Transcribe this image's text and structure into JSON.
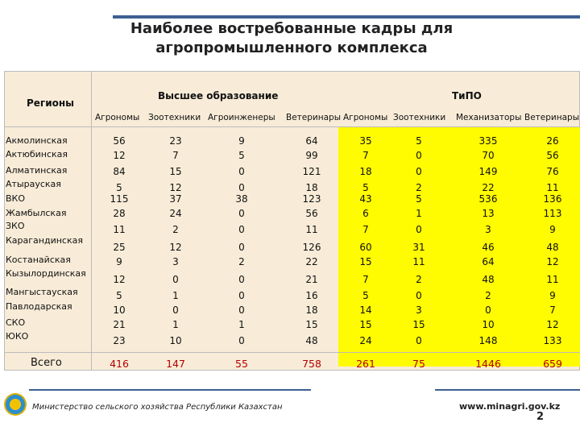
{
  "title_line1": "Наиболее востребованные кадры для",
  "title_line2": "агропромышленного комплекса",
  "header": {
    "regions": "Регионы",
    "higher_education": "Высшее образование",
    "tipo": "ТиПО",
    "subcolumns": [
      "Агрономы",
      "Зоотехники",
      "Агроинженеры",
      "Ветеринары",
      "Агрономы",
      "Зоотехники",
      "Механизаторы",
      "Ветеринары"
    ]
  },
  "rows": [
    {
      "region": "Акмолинская",
      "values": [
        "56",
        "23",
        "9",
        "64",
        "35",
        "5",
        "335",
        "26"
      ]
    },
    {
      "region": "Актюбинская",
      "values": [
        "12",
        "7",
        "5",
        "99",
        "7",
        "0",
        "70",
        "56"
      ]
    },
    {
      "region": "Алматинская",
      "values": [
        "84",
        "15",
        "0",
        "121",
        "18",
        "0",
        "149",
        "76"
      ]
    },
    {
      "region": "Атырауская",
      "values": [
        "5",
        "12",
        "0",
        "18",
        "5",
        "2",
        "22",
        "11"
      ]
    },
    {
      "region": "ВКО",
      "values": [
        "115",
        "37",
        "38",
        "123",
        "43",
        "5",
        "536",
        "136"
      ]
    },
    {
      "region": "Жамбылская",
      "values": [
        "28",
        "24",
        "0",
        "56",
        "6",
        "1",
        "13",
        "113"
      ]
    },
    {
      "region": "ЗКО",
      "values": [
        "11",
        "2",
        "0",
        "11",
        "7",
        "0",
        "3",
        "9"
      ]
    },
    {
      "region": "Карагандинская",
      "values": [
        "25",
        "12",
        "0",
        "126",
        "60",
        "31",
        "46",
        "48"
      ]
    },
    {
      "region": "Костанайская",
      "values": [
        "9",
        "3",
        "2",
        "22",
        "15",
        "11",
        "64",
        "12"
      ]
    },
    {
      "region": "Кызылординская",
      "values": [
        "12",
        "0",
        "0",
        "21",
        "7",
        "2",
        "48",
        "11"
      ]
    },
    {
      "region": "Мангыстауская",
      "values": [
        "5",
        "1",
        "0",
        "16",
        "5",
        "0",
        "2",
        "9"
      ]
    },
    {
      "region": "Павлодарская",
      "values": [
        "10",
        "0",
        "0",
        "18",
        "14",
        "3",
        "0",
        "7"
      ]
    },
    {
      "region": "СКО",
      "values": [
        "21",
        "1",
        "1",
        "15",
        "15",
        "15",
        "10",
        "12"
      ]
    },
    {
      "region": "ЮКО",
      "values": [
        "23",
        "10",
        "0",
        "48",
        "24",
        "0",
        "148",
        "133"
      ]
    }
  ],
  "total": {
    "label": "Всего",
    "values": [
      "416",
      "147",
      "55",
      "758",
      "261",
      "75",
      "1446",
      "659"
    ]
  },
  "footer": {
    "ministry": "Министерство сельского хозяйства Республики Казахстан",
    "website": "www.minagri.gov.kz",
    "page": "2"
  },
  "colors": {
    "table_bg": "#f8ecd8",
    "highlight": "#fffb00",
    "total_text": "#b30000",
    "accent_line": "#3d5f93"
  }
}
